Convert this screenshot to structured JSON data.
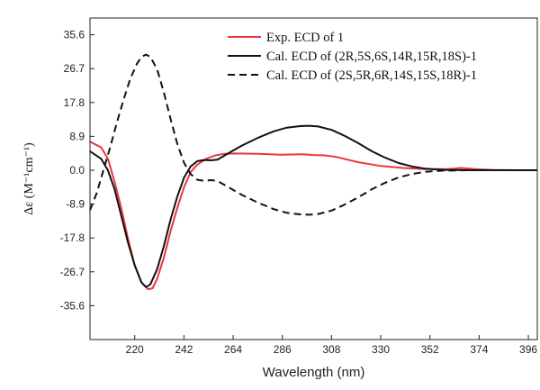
{
  "chart_data": {
    "type": "line",
    "xlabel": "Wavelength (nm)",
    "ylabel": "Δε (M⁻¹cm⁻¹)",
    "xlim": [
      200,
      400
    ],
    "ylim": [
      -44.5,
      40
    ],
    "x_ticks": [
      220,
      242,
      264,
      286,
      308,
      330,
      352,
      374,
      396
    ],
    "y_ticks": [
      35.6,
      26.7,
      17.8,
      8.9,
      0.0,
      -8.9,
      -17.8,
      -26.7,
      -35.6
    ],
    "y_tick_labels": [
      "35.6",
      "26.7",
      "17.8",
      "8.9",
      "0.0",
      "-8.9",
      "-17.8",
      "-26.7",
      "-35.6"
    ],
    "grid": false,
    "legend_position": "top-right",
    "series": [
      {
        "name": "Exp. ECD of 1",
        "color": "#e8383b",
        "style": "solid",
        "points": [
          [
            200,
            7.5
          ],
          [
            205,
            6.0
          ],
          [
            208,
            3.0
          ],
          [
            211,
            -3.0
          ],
          [
            214,
            -10.0
          ],
          [
            217,
            -18.0
          ],
          [
            220,
            -25.0
          ],
          [
            223,
            -29.5
          ],
          [
            226,
            -31.3
          ],
          [
            228,
            -31.0
          ],
          [
            230,
            -28.5
          ],
          [
            233,
            -23.0
          ],
          [
            236,
            -16.0
          ],
          [
            239,
            -10.0
          ],
          [
            242,
            -4.5
          ],
          [
            245,
            -0.5
          ],
          [
            248,
            1.5
          ],
          [
            252,
            3.0
          ],
          [
            256,
            3.9
          ],
          [
            260,
            4.3
          ],
          [
            265,
            4.4
          ],
          [
            275,
            4.3
          ],
          [
            285,
            4.1
          ],
          [
            295,
            4.2
          ],
          [
            300,
            4.0
          ],
          [
            305,
            3.9
          ],
          [
            310,
            3.5
          ],
          [
            315,
            2.8
          ],
          [
            320,
            2.1
          ],
          [
            325,
            1.6
          ],
          [
            330,
            1.1
          ],
          [
            340,
            0.6
          ],
          [
            350,
            0.3
          ],
          [
            360,
            0.3
          ],
          [
            366,
            0.6
          ],
          [
            372,
            0.3
          ],
          [
            380,
            0.1
          ],
          [
            390,
            0.0
          ],
          [
            400,
            0.0
          ]
        ]
      },
      {
        "name": "Cal. ECD of (2R,5S,6S,14R,15R,18S)-1",
        "color": "#111111",
        "style": "solid",
        "points": [
          [
            200,
            5.0
          ],
          [
            205,
            3.0
          ],
          [
            208,
            0.0
          ],
          [
            211,
            -5.0
          ],
          [
            214,
            -12.0
          ],
          [
            217,
            -19.0
          ],
          [
            220,
            -25.0
          ],
          [
            223,
            -29.5
          ],
          [
            225,
            -30.7
          ],
          [
            227,
            -30.0
          ],
          [
            230,
            -26.0
          ],
          [
            233,
            -20.0
          ],
          [
            236,
            -13.0
          ],
          [
            239,
            -7.0
          ],
          [
            242,
            -2.0
          ],
          [
            245,
            1.0
          ],
          [
            248,
            2.4
          ],
          [
            251,
            2.7
          ],
          [
            254,
            2.6
          ],
          [
            257,
            2.8
          ],
          [
            262,
            4.5
          ],
          [
            268,
            6.5
          ],
          [
            275,
            8.5
          ],
          [
            282,
            10.2
          ],
          [
            288,
            11.2
          ],
          [
            294,
            11.6
          ],
          [
            298,
            11.7
          ],
          [
            302,
            11.5
          ],
          [
            308,
            10.6
          ],
          [
            314,
            9.0
          ],
          [
            320,
            7.1
          ],
          [
            326,
            5.0
          ],
          [
            332,
            3.3
          ],
          [
            338,
            1.9
          ],
          [
            344,
            1.0
          ],
          [
            350,
            0.4
          ],
          [
            358,
            0.1
          ],
          [
            370,
            0.0
          ],
          [
            400,
            0.0
          ]
        ]
      },
      {
        "name": "Cal. ECD of (2S,5R,6R,14S,15S,18R)-1",
        "color": "#111111",
        "style": "dashed",
        "points": [
          [
            200,
            -10.5
          ],
          [
            203,
            -6.0
          ],
          [
            206,
            0.0
          ],
          [
            209,
            6.0
          ],
          [
            212,
            12.5
          ],
          [
            215,
            18.5
          ],
          [
            218,
            24.0
          ],
          [
            221,
            28.0
          ],
          [
            223,
            29.8
          ],
          [
            225,
            30.4
          ],
          [
            227,
            29.8
          ],
          [
            230,
            26.5
          ],
          [
            233,
            20.5
          ],
          [
            236,
            13.5
          ],
          [
            239,
            7.0
          ],
          [
            242,
            2.0
          ],
          [
            245,
            -1.0
          ],
          [
            248,
            -2.5
          ],
          [
            251,
            -2.8
          ],
          [
            254,
            -2.6
          ],
          [
            257,
            -2.8
          ],
          [
            262,
            -4.5
          ],
          [
            268,
            -6.5
          ],
          [
            275,
            -8.5
          ],
          [
            282,
            -10.2
          ],
          [
            288,
            -11.2
          ],
          [
            294,
            -11.6
          ],
          [
            298,
            -11.7
          ],
          [
            302,
            -11.5
          ],
          [
            308,
            -10.6
          ],
          [
            314,
            -9.0
          ],
          [
            320,
            -7.1
          ],
          [
            326,
            -5.0
          ],
          [
            332,
            -3.3
          ],
          [
            338,
            -1.9
          ],
          [
            344,
            -1.0
          ],
          [
            350,
            -0.4
          ],
          [
            358,
            -0.1
          ],
          [
            370,
            0.0
          ],
          [
            400,
            0.0
          ]
        ]
      }
    ]
  }
}
